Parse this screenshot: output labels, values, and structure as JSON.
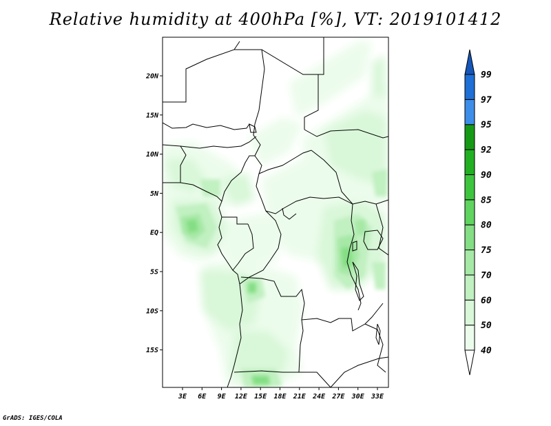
{
  "title": "Relative humidity at 400hPa [%], VT: 2019101412",
  "credit": "GrADS: IGES/COLA",
  "map": {
    "lon_labels": [
      "3E",
      "6E",
      "9E",
      "12E",
      "15E",
      "18E",
      "21E",
      "24E",
      "27E",
      "30E",
      "33E"
    ],
    "lat_labels": [
      "20N",
      "15N",
      "10N",
      "5N",
      "EQ",
      "5S",
      "10S",
      "15S"
    ]
  },
  "legend": {
    "levels": [
      "40",
      "50",
      "60",
      "70",
      "75",
      "80",
      "85",
      "90",
      "92",
      "95",
      "97",
      "99"
    ],
    "colors": {
      "lt40": "#ffffff",
      "40_50": "#ecfcec",
      "50_60": "#d9f7d9",
      "60_70": "#c1f0c1",
      "70_75": "#a6e8a6",
      "75_80": "#84de84",
      "80_85": "#5fd45f",
      "85_90": "#3ec53e",
      "90_92": "#22b022",
      "92_95": "#169a16",
      "95_97": "#3d8ee8",
      "97_99": "#1e6fd6",
      "gt99": "#1556b8"
    }
  }
}
